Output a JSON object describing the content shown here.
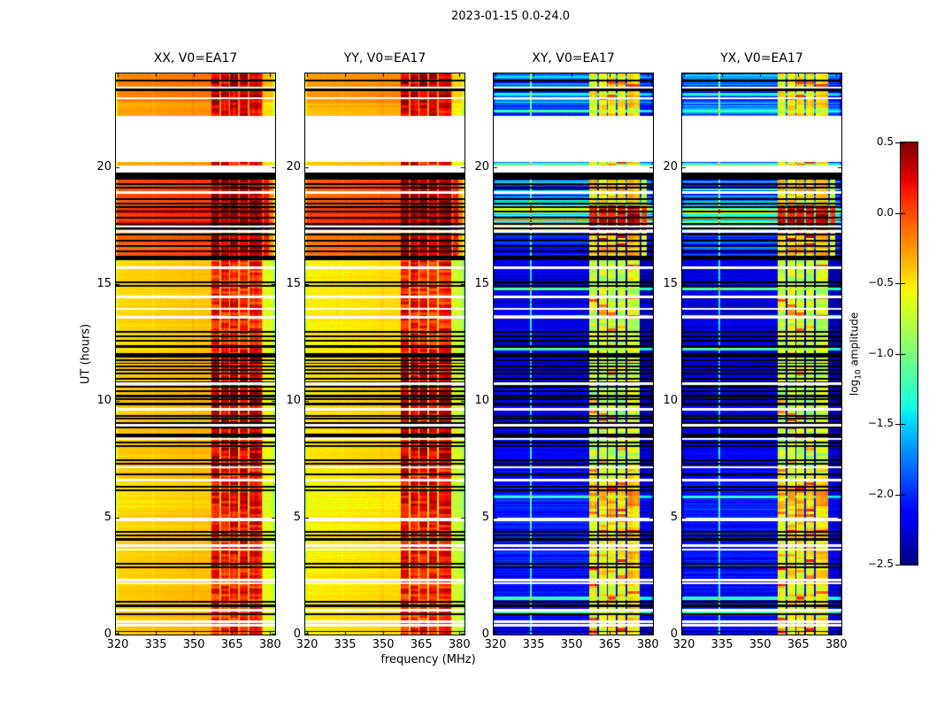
{
  "figure": {
    "title": "2023-01-15 0.0-24.0",
    "xlabel": "frequency (MHz)",
    "ylabel": "UT (hours)"
  },
  "axes": {
    "x_ticks": [
      "320",
      "335",
      "350",
      "365",
      "380"
    ],
    "x_tick_values": [
      320,
      335,
      350,
      365,
      380
    ],
    "y_ticks": [
      "0",
      "5",
      "10",
      "15",
      "20"
    ],
    "y_tick_values": [
      0,
      5,
      10,
      15,
      20
    ]
  },
  "colorbar": {
    "label_pre": "log",
    "label_sub": "10",
    "label_post": " amplitude",
    "ticks": [
      "0.5",
      "0.0",
      "−0.5",
      "−1.0",
      "−1.5",
      "−2.0",
      "−2.5"
    ],
    "tick_values": [
      0.5,
      0.0,
      -0.5,
      -1.0,
      -1.5,
      -2.0,
      -2.5
    ],
    "clim": [
      -2.5,
      0.5
    ],
    "colormap": "jet"
  },
  "chart_data": {
    "type": "heatmap",
    "description": "Dynamic spectra (waterfall plots) of visibility amplitude vs frequency and time for antenna EA17, four polarization products. XX/YY are bright (yellow-orange-red); XY/YX are faint (blue) with RFI. White rows = missing data, black rows = flagged integrations.",
    "panels": [
      {
        "title": "XX, V0=EA17",
        "pol": "XX",
        "family": "auto"
      },
      {
        "title": "YY, V0=EA17",
        "pol": "YY",
        "family": "auto"
      },
      {
        "title": "XY, V0=EA17",
        "pol": "XY",
        "family": "cross"
      },
      {
        "title": "YX, V0=EA17",
        "pol": "YX",
        "family": "cross"
      }
    ],
    "freq_range_mhz": [
      319.3,
      382.0
    ],
    "ut_range_hours": [
      0,
      24
    ],
    "rfi_stripes_mhz": [
      [
        357.0,
        360.1
      ],
      [
        360.7,
        363.8
      ],
      [
        364.4,
        367.5
      ],
      [
        368.1,
        371.2
      ],
      [
        371.8,
        376.8
      ]
    ],
    "rfi_hot_extension_mhz": [
      377.3,
      379.5
    ],
    "spectral_line_cross_mhz": 334.0,
    "spectral_line_auto_mhz": 349.7,
    "segments": [
      {
        "t0": 0.0,
        "t1": 2.6,
        "axx": -0.43,
        "ayy": -0.52,
        "cross": -2.15,
        "rfiA": 0.12,
        "rfiC": -0.55,
        "stA": 0.09,
        "stC": 0.35
      },
      {
        "t0": 2.6,
        "t1": 5.3,
        "axx": -0.45,
        "ayy": -0.55,
        "cross": -2.1,
        "rfiA": 0.17,
        "rfiC": -0.5,
        "stA": 0.09,
        "stC": 0.35
      },
      {
        "t0": 5.3,
        "t1": 6.5,
        "axx": -0.5,
        "ayy": -0.58,
        "cross": -2.05,
        "rfiA": 0.2,
        "rfiC": -0.35,
        "stA": 0.1,
        "stC": 0.4
      },
      {
        "t0": 6.5,
        "t1": 7.2,
        "axx": -0.43,
        "ayy": -0.52,
        "cross": -2.15,
        "rfiA": 0.15,
        "rfiC": -0.6,
        "stA": 0.09,
        "stC": 0.3
      },
      {
        "t0": 7.2,
        "t1": 11.85,
        "axx": -0.42,
        "ayy": -0.5,
        "cross": -2.2,
        "rfiA": 0.32,
        "rfiC": -0.75,
        "stA": 0.09,
        "stC": 0.25
      },
      {
        "t0": 12.05,
        "t1": 16.0,
        "axx": -0.46,
        "ayy": -0.54,
        "cross": -2.25,
        "rfiA": 0.12,
        "rfiC": -0.7,
        "stA": 0.08,
        "stC": 0.3
      },
      {
        "t0": 16.22,
        "t1": 17.3,
        "axx": -0.1,
        "ayy": -0.15,
        "cross": -1.95,
        "rfiA": 0.42,
        "rfiC": -0.35,
        "stA": 0.13,
        "stC": 0.9
      },
      {
        "t0": 17.3,
        "t1": 18.35,
        "axx": 0.08,
        "ayy": 0.04,
        "cross": -1.05,
        "rfiA": 0.48,
        "rfiC": 0.3,
        "stA": 0.15,
        "stC": 1.5
      },
      {
        "t0": 18.35,
        "t1": 19.45,
        "axx": -0.05,
        "ayy": -0.1,
        "cross": -1.75,
        "rfiA": 0.44,
        "rfiC": -0.45,
        "stA": 0.13,
        "stC": 1.0
      },
      {
        "t0": 20.05,
        "t1": 20.2,
        "axx": -0.3,
        "ayy": -0.4,
        "cross": -1.9,
        "rfiA": 0.2,
        "rfiC": -0.6,
        "stA": 0.1,
        "stC": 0.5
      },
      {
        "t0": 22.2,
        "t1": 22.75,
        "axx": -0.3,
        "ayy": -0.36,
        "cross": -1.85,
        "rfiA": 0.25,
        "rfiC": -0.55,
        "stA": 0.11,
        "stC": 0.7
      },
      {
        "t0": 22.75,
        "t1": 24.0,
        "axx": -0.2,
        "ayy": -0.26,
        "cross": -1.8,
        "rfiA": 0.35,
        "rfiC": -0.5,
        "stA": 0.11,
        "stC": 0.8
      }
    ],
    "black_bands_ut": [
      [
        19.45,
        19.75
      ],
      [
        16.0,
        16.22
      ],
      [
        11.85,
        12.05
      ],
      [
        8.45,
        8.6
      ]
    ],
    "white_gaps_ut": [
      [
        19.75,
        20.05
      ],
      [
        20.2,
        22.2
      ]
    ],
    "black_rows_ut": [
      [
        23.7,
        0.04
      ],
      [
        23.3,
        0.04
      ],
      [
        19.28,
        0.04
      ],
      [
        19.12,
        0.04
      ],
      [
        18.62,
        0.04
      ],
      [
        18.45,
        0.04
      ],
      [
        18.28,
        0.04
      ],
      [
        18.08,
        0.04
      ],
      [
        17.82,
        0.04
      ],
      [
        17.56,
        0.04
      ],
      [
        17.36,
        0.04
      ],
      [
        17.12,
        0.04
      ],
      [
        16.86,
        0.04
      ],
      [
        16.62,
        0.04
      ],
      [
        16.4,
        0.04
      ],
      [
        15.06,
        0.04
      ],
      [
        14.93,
        0.04
      ],
      [
        12.93,
        0.04
      ],
      [
        12.76,
        0.04
      ],
      [
        12.56,
        0.04
      ],
      [
        12.32,
        0.04
      ],
      [
        11.72,
        0.035
      ],
      [
        11.6,
        0.035
      ],
      [
        11.47,
        0.035
      ],
      [
        11.32,
        0.035
      ],
      [
        11.18,
        0.035
      ],
      [
        10.93,
        0.04
      ],
      [
        10.8,
        0.035
      ],
      [
        10.6,
        0.04
      ],
      [
        10.4,
        0.035
      ],
      [
        10.2,
        0.04
      ],
      [
        10.06,
        0.035
      ],
      [
        9.86,
        0.04
      ],
      [
        9.36,
        0.035
      ],
      [
        9.22,
        0.04
      ],
      [
        9.06,
        0.035
      ],
      [
        8.86,
        0.04
      ],
      [
        8.22,
        0.04
      ],
      [
        8.06,
        0.04
      ],
      [
        7.46,
        0.04
      ],
      [
        7.31,
        0.04
      ],
      [
        6.86,
        0.04
      ],
      [
        6.32,
        0.04
      ],
      [
        6.16,
        0.04
      ],
      [
        4.4,
        0.04
      ],
      [
        4.24,
        0.04
      ],
      [
        4.07,
        0.04
      ],
      [
        3.03,
        0.04
      ],
      [
        2.89,
        0.04
      ],
      [
        1.39,
        0.04
      ],
      [
        1.23,
        0.04
      ],
      [
        0.86,
        0.04
      ],
      [
        0.13,
        0.03
      ]
    ],
    "white_rows_ut": [
      [
        23.4,
        0.05
      ],
      [
        22.94,
        0.05
      ],
      [
        18.92,
        0.05
      ],
      [
        17.45,
        0.05
      ],
      [
        17.25,
        0.05
      ],
      [
        15.7,
        0.05
      ],
      [
        14.44,
        0.05
      ],
      [
        13.93,
        0.05
      ],
      [
        13.56,
        0.05
      ],
      [
        10.73,
        0.05
      ],
      [
        9.63,
        0.05
      ],
      [
        8.96,
        0.05
      ],
      [
        8.36,
        0.05
      ],
      [
        7.16,
        0.05
      ],
      [
        6.6,
        0.05
      ],
      [
        4.93,
        0.08
      ],
      [
        3.8,
        0.05
      ],
      [
        3.64,
        0.05
      ],
      [
        2.34,
        0.05
      ],
      [
        2.2,
        0.05
      ],
      [
        1.04,
        0.05
      ],
      [
        0.54,
        0.05
      ],
      [
        0.4,
        0.05
      ]
    ],
    "cross_bright_rows_ut": [
      23.1,
      22.4,
      20.1,
      14.78,
      13.62,
      12.2,
      9.0,
      5.9,
      1.55,
      0.92
    ]
  }
}
